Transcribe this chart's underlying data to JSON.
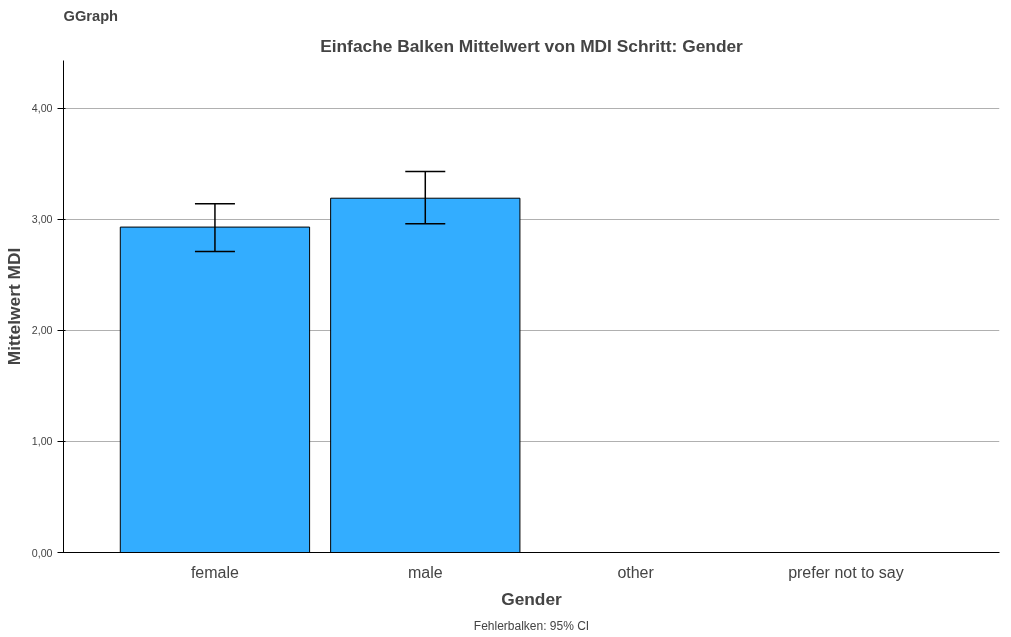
{
  "chart_data": {
    "type": "bar",
    "title": "Einfache Balken Mittelwert von MDI Schritt: Gender",
    "xlabel": "Gender",
    "ylabel": "Mittelwert MDI",
    "categories": [
      "female",
      "male",
      "other",
      "prefer not to say"
    ],
    "values": [
      2.93,
      3.19,
      null,
      null
    ],
    "errors": [
      [
        2.71,
        3.14
      ],
      [
        2.96,
        3.43
      ],
      null,
      null
    ],
    "color": "#33adff",
    "ylim": [
      0,
      4.43
    ],
    "yticks": [
      {
        "value": 0,
        "label": "0,00"
      },
      {
        "value": 1,
        "label": "1,00"
      },
      {
        "value": 2,
        "label": "2,00"
      },
      {
        "value": 3,
        "label": "3,00"
      },
      {
        "value": 4,
        "label": "4,00"
      }
    ],
    "grid": "y",
    "annotations": [
      "GGraph",
      "Fehlerbalken: 95% CI"
    ]
  }
}
